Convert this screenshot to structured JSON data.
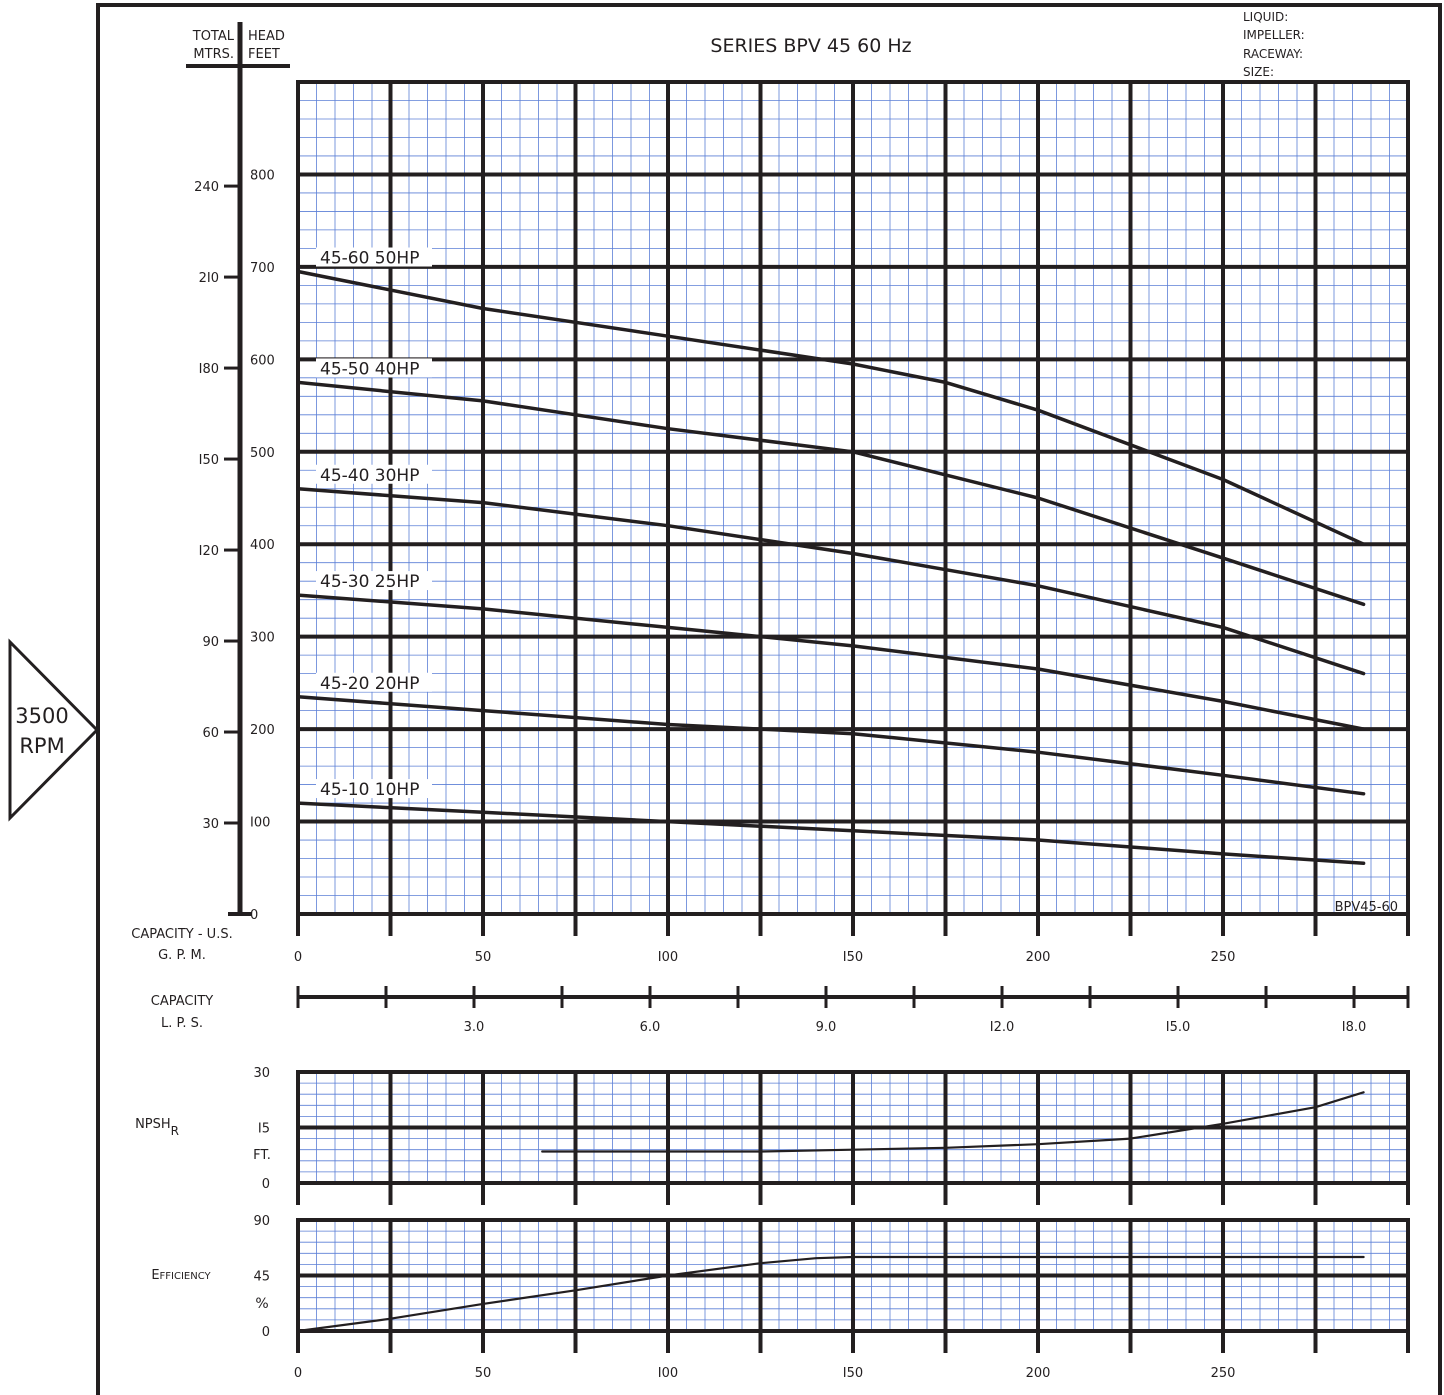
{
  "header": {
    "title": "SERIES BPV 45 60 Hz",
    "info_labels": [
      "LIQUID:",
      "IMPELLER:",
      "RACEWAY:",
      "SIZE:"
    ],
    "code": "BPV45-60"
  },
  "rpm_badge": {
    "line1": "3500",
    "line2": "RPM"
  },
  "colors": {
    "ink": "#231f20",
    "grid_minor": "#5b7fd6",
    "background": "#ffffff"
  },
  "chart_data": [
    {
      "type": "line",
      "name": "head",
      "axis_title_left_top": "TOTAL",
      "axis_title_left_bottom": "MTRS.",
      "axis_title_right_top": "HEAD",
      "axis_title_right_bottom": "FEET",
      "xlabel_line1": "CAPACITY - U.S.",
      "xlabel_line2": "G. P. M.",
      "xlim": [
        0,
        300
      ],
      "ylim": [
        0,
        900
      ],
      "x_ticks": [
        0,
        50,
        100,
        150,
        200,
        250
      ],
      "x_tick_labels": [
        "0",
        "50",
        "I00",
        "I50",
        "200",
        "250"
      ],
      "y_ticks_feet": [
        0,
        100,
        200,
        300,
        400,
        500,
        600,
        700,
        800
      ],
      "y_tick_labels_feet": [
        "0",
        "I00",
        "200",
        "300",
        "400",
        "500",
        "600",
        "700",
        "800"
      ],
      "y_ticks_m": [
        30,
        60,
        90,
        120,
        150,
        180,
        210,
        240
      ],
      "y_tick_labels_m": [
        "30",
        "60",
        "90",
        "I20",
        "I50",
        "I80",
        "2I0",
        "240"
      ],
      "grid": true,
      "series": [
        {
          "name": "45-10 10HP",
          "x": [
            0,
            50,
            100,
            150,
            200,
            250,
            288
          ],
          "y": [
            120,
            110,
            100,
            90,
            80,
            65,
            55
          ]
        },
        {
          "name": "45-20 20HP",
          "x": [
            0,
            50,
            100,
            150,
            200,
            250,
            288
          ],
          "y": [
            235,
            220,
            205,
            195,
            175,
            150,
            130
          ]
        },
        {
          "name": "45-30 25HP",
          "x": [
            0,
            50,
            100,
            150,
            200,
            250,
            288
          ],
          "y": [
            345,
            330,
            310,
            290,
            265,
            230,
            200
          ]
        },
        {
          "name": "45-40 30HP",
          "x": [
            0,
            50,
            100,
            150,
            200,
            250,
            288
          ],
          "y": [
            460,
            445,
            420,
            390,
            355,
            310,
            260
          ]
        },
        {
          "name": "45-50 40HP",
          "x": [
            0,
            50,
            100,
            150,
            200,
            250,
            288
          ],
          "y": [
            575,
            555,
            525,
            500,
            450,
            385,
            335
          ]
        },
        {
          "name": "45-60 50HP",
          "x": [
            0,
            50,
            100,
            150,
            175,
            200,
            250,
            288
          ],
          "y": [
            695,
            655,
            625,
            595,
            575,
            545,
            470,
            400
          ]
        }
      ]
    },
    {
      "type": "scale",
      "name": "capacity-lps",
      "label_line1": "CAPACITY",
      "label_line2": "L. P. S.",
      "lim": [
        0,
        18.92
      ],
      "ticks": [
        0,
        1.5,
        3,
        4.5,
        6,
        7.5,
        9,
        10.5,
        12,
        13.5,
        15,
        16.5,
        18
      ],
      "tick_labels": [
        {
          "value": 3,
          "text": "3.0"
        },
        {
          "value": 6,
          "text": "6.0"
        },
        {
          "value": 9,
          "text": "9.0"
        },
        {
          "value": 12,
          "text": "I2.0"
        },
        {
          "value": 15,
          "text": "I5.0"
        },
        {
          "value": 18,
          "text": "I8.0"
        }
      ]
    },
    {
      "type": "line",
      "name": "npsh",
      "label_main": "NPSH",
      "label_sub": "R",
      "unit": "FT.",
      "xlim": [
        0,
        300
      ],
      "ylim": [
        0,
        30
      ],
      "y_ticks": [
        0,
        15,
        30
      ],
      "y_tick_labels": [
        "0",
        "I5",
        "30"
      ],
      "grid": true,
      "series": [
        {
          "name": "",
          "x": [
            66,
            100,
            125,
            150,
            175,
            200,
            225,
            250,
            275,
            288
          ],
          "y": [
            8.5,
            8.5,
            8.5,
            9,
            9.5,
            10.5,
            12,
            16,
            20.5,
            24.5
          ]
        }
      ]
    },
    {
      "type": "line",
      "name": "efficiency",
      "label": "EFFICIENCY",
      "unit": "%",
      "xlim": [
        0,
        300
      ],
      "ylim": [
        0,
        90
      ],
      "y_ticks": [
        0,
        45,
        90
      ],
      "y_tick_labels": [
        "0",
        "45",
        "90"
      ],
      "x_ticks": [
        0,
        50,
        100,
        150,
        200,
        250
      ],
      "x_tick_labels": [
        "0",
        "50",
        "I00",
        "I50",
        "200",
        "250"
      ],
      "grid": true,
      "series": [
        {
          "name": "",
          "x": [
            0,
            25,
            50,
            75,
            100,
            125,
            140,
            150,
            200,
            250,
            288
          ],
          "y": [
            0,
            10,
            22,
            33,
            45,
            55,
            59,
            60,
            60,
            60,
            60
          ]
        }
      ]
    }
  ]
}
